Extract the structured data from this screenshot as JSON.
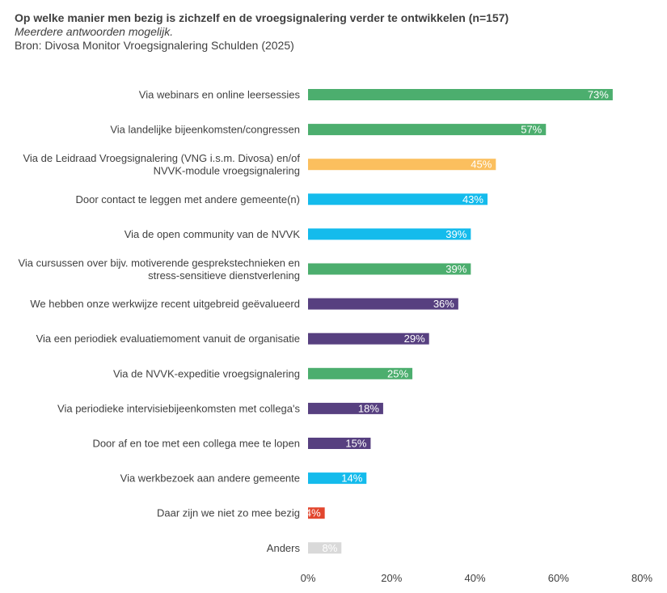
{
  "header": {
    "title": "Op welke manier men bezig is zichzelf en de vroegsignalering verder te ontwikkelen (n=157)",
    "subtitle": "Meerdere antwoorden mogelijk.",
    "source": "Bron: Divosa Monitor Vroegsignalering Schulden (2025)"
  },
  "colors": {
    "green": "#4cae6e",
    "orange": "#fbbf5e",
    "blue": "#14bbec",
    "purple": "#574080",
    "red": "#e2462e",
    "gray": "#d9d9d9"
  },
  "chart_data": {
    "type": "bar",
    "orientation": "horizontal",
    "title": "Op welke manier men bezig is zichzelf en de vroegsignalering verder te ontwikkelen (n=157)",
    "xlabel": "",
    "ylabel": "",
    "xlim": [
      0,
      80
    ],
    "ticks": [
      0,
      20,
      40,
      60,
      80
    ],
    "tick_labels": [
      "0%",
      "20%",
      "40%",
      "60%",
      "80%"
    ],
    "grid": false,
    "categories": [
      [
        "Via webinars en online leersessies"
      ],
      [
        "Via landelijke bijeenkomsten/congressen"
      ],
      [
        "Via de Leidraad Vroegsignalering (VNG i.s.m. Divosa) en/of",
        "NVVK-module vroegsignalering"
      ],
      [
        "Door contact te leggen met andere gemeente(n)"
      ],
      [
        "Via de open community van de NVVK"
      ],
      [
        "Via cursussen over bijv. motiverende gesprekstechnieken en",
        "stress-sensitieve dienstverlening"
      ],
      [
        "We hebben onze werkwijze recent uitgebreid geëvalueerd"
      ],
      [
        "Via een periodiek evaluatiemoment vanuit de organisatie"
      ],
      [
        "Via de NVVK-expeditie vroegsignalering"
      ],
      [
        "Via periodieke intervisiebijeenkomsten met collega's"
      ],
      [
        "Door af en toe met een collega mee te lopen"
      ],
      [
        "Via werkbezoek aan andere gemeente"
      ],
      [
        "Daar zijn we niet zo mee bezig"
      ],
      [
        "Anders"
      ]
    ],
    "values": [
      73,
      57,
      45,
      43,
      39,
      39,
      36,
      29,
      25,
      18,
      15,
      14,
      4,
      8
    ],
    "value_labels": [
      "73%",
      "57%",
      "45%",
      "43%",
      "39%",
      "39%",
      "36%",
      "29%",
      "25%",
      "18%",
      "15%",
      "14%",
      "4%",
      "8%"
    ],
    "bar_colors": [
      "green",
      "green",
      "orange",
      "blue",
      "blue",
      "green",
      "purple",
      "purple",
      "green",
      "purple",
      "purple",
      "blue",
      "red",
      "gray"
    ]
  }
}
